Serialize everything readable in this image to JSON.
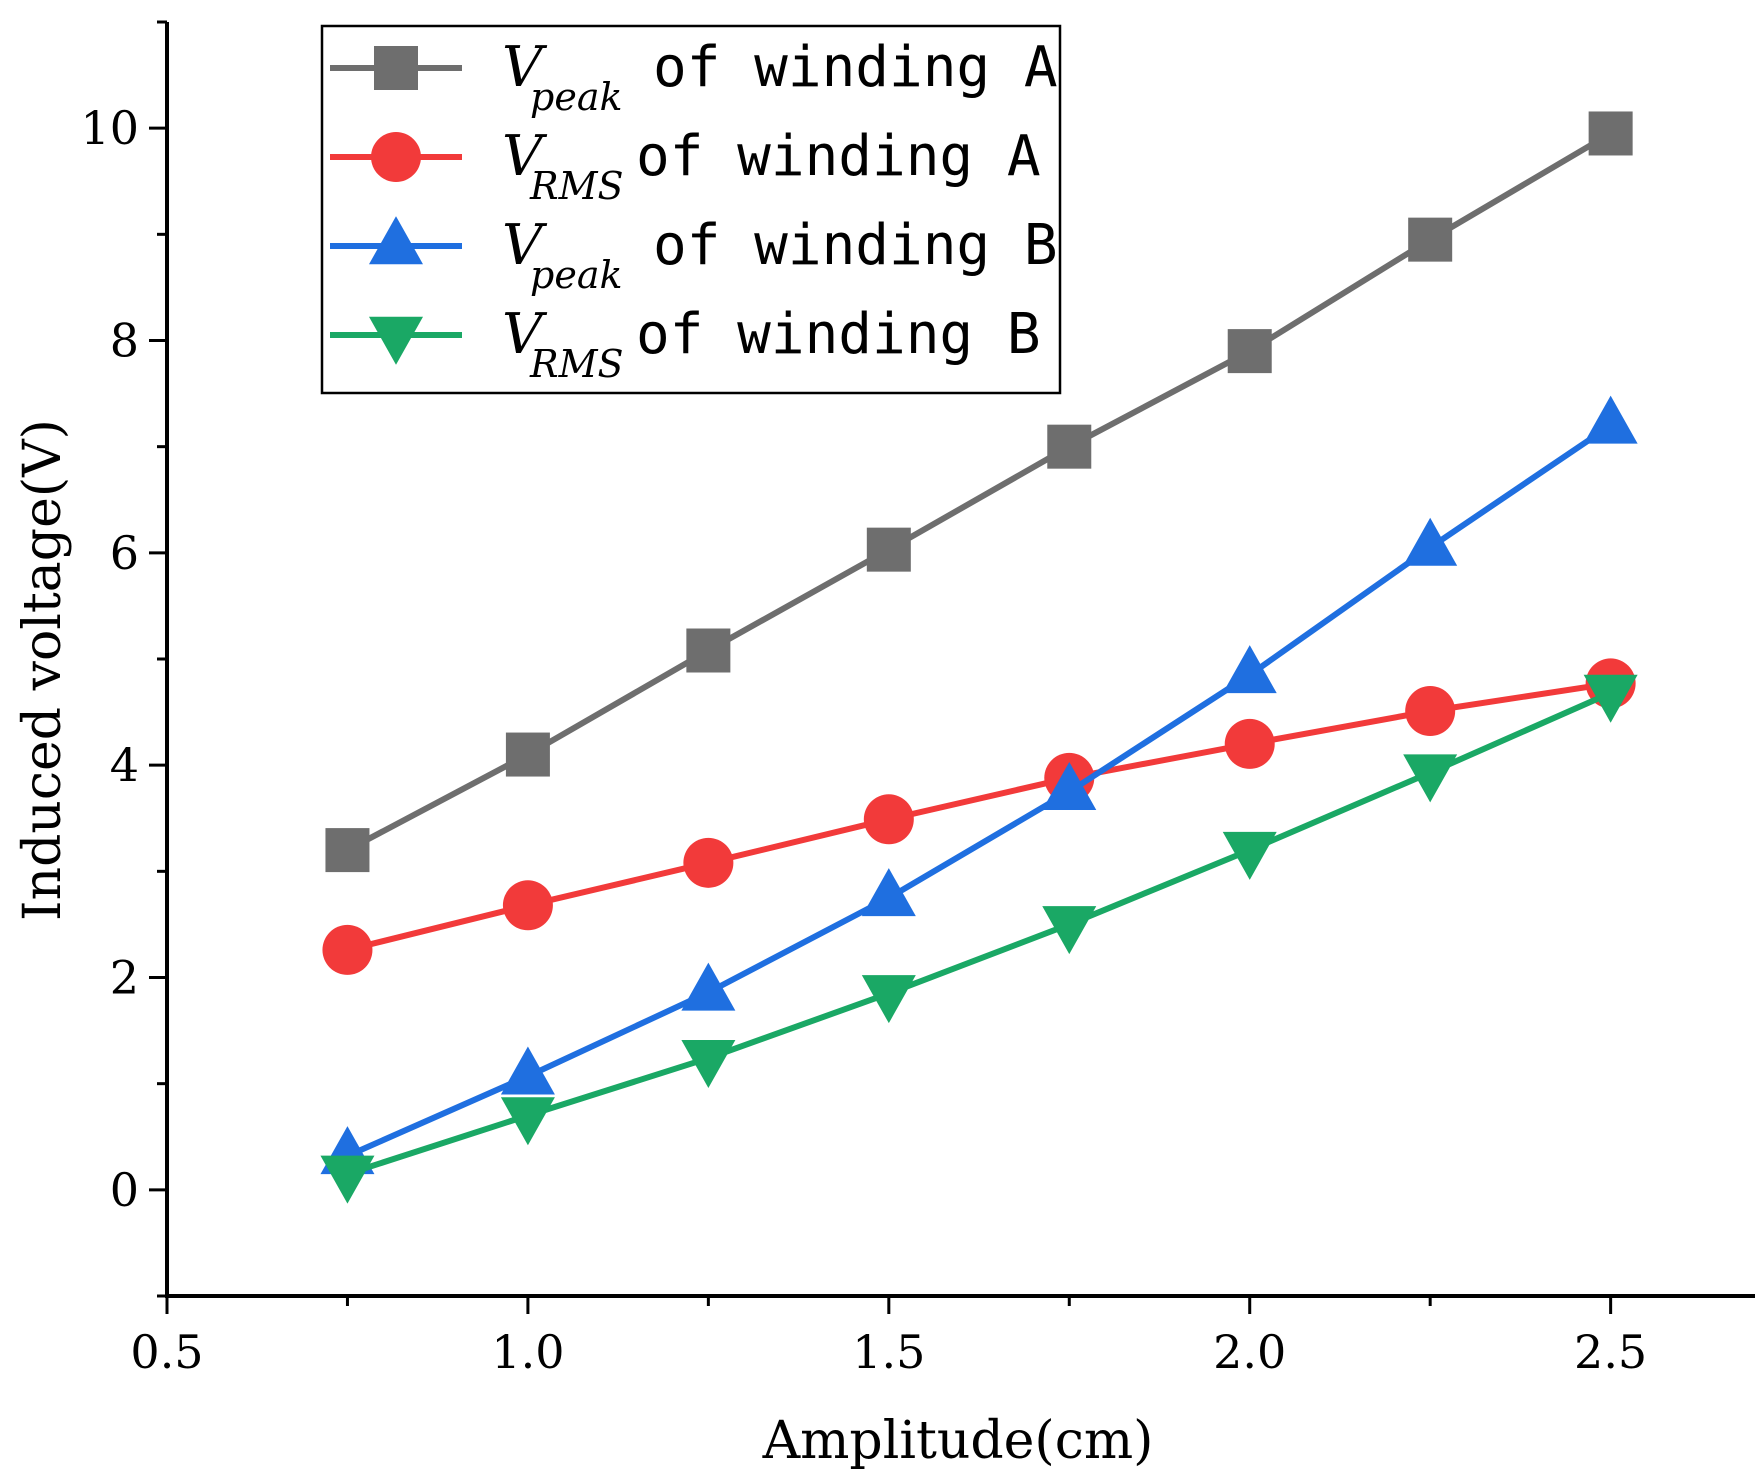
{
  "chart_data": {
    "type": "line",
    "title": "",
    "xlabel": "Amplitude(cm)",
    "ylabel": "Induced voltage(V)",
    "xlim": [
      0.5,
      2.7
    ],
    "ylim": [
      -1,
      11
    ],
    "xticks": [
      0.5,
      1.0,
      1.5,
      2.0,
      2.5
    ],
    "xtick_labels": [
      "0.5",
      "1.0",
      "1.5",
      "2.0",
      "2.5"
    ],
    "yticks": [
      0,
      2,
      4,
      6,
      8,
      10
    ],
    "ytick_labels": [
      "0",
      "2",
      "4",
      "6",
      "8",
      "10"
    ],
    "grid": false,
    "legend_position": "top-left",
    "x": [
      0.75,
      1.0,
      1.25,
      1.5,
      1.75,
      2.0,
      2.25,
      2.5
    ],
    "series": [
      {
        "name": "Vpeak of winding A",
        "var": "V",
        "sub": "peak",
        "suffix": "of winding A",
        "color": "#6e6e6e",
        "marker": "square",
        "values": [
          3.2,
          4.1,
          5.08,
          6.03,
          7.0,
          7.9,
          8.95,
          9.95
        ]
      },
      {
        "name": "VRMS of winding A",
        "var": "V",
        "sub": "RMS",
        "suffix": "of winding A",
        "color": "#f23a3a",
        "marker": "circle",
        "values": [
          2.26,
          2.68,
          3.08,
          3.49,
          3.88,
          4.2,
          4.51,
          4.77
        ]
      },
      {
        "name": "Vpeak of winding B",
        "var": "V",
        "sub": "peak",
        "suffix": "of winding B",
        "color": "#1f6fe0",
        "marker": "triangle-up",
        "values": [
          0.32,
          1.07,
          1.86,
          2.75,
          3.75,
          4.85,
          6.05,
          7.2
        ]
      },
      {
        "name": "VRMS of winding B",
        "var": "V",
        "sub": "RMS",
        "suffix": "of winding B",
        "color": "#1aa865",
        "marker": "triangle-down",
        "values": [
          0.15,
          0.7,
          1.24,
          1.85,
          2.5,
          3.2,
          3.93,
          4.68
        ]
      }
    ]
  }
}
